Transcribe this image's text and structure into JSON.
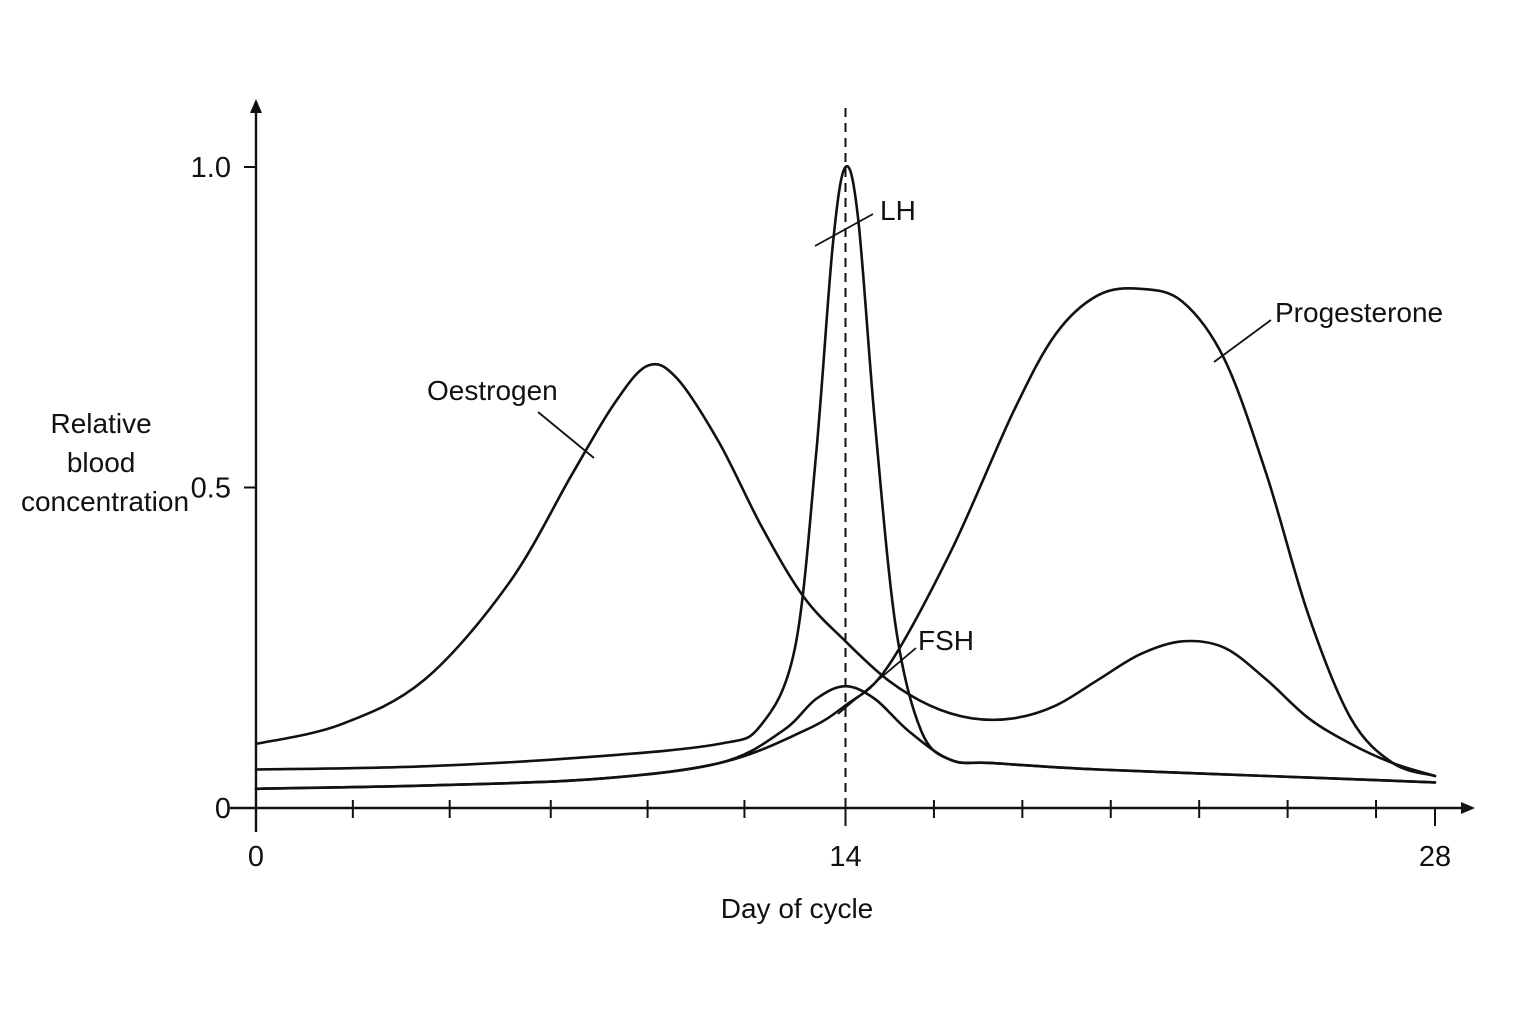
{
  "chart_data": {
    "type": "line",
    "title": "",
    "xlabel": "Day of cycle",
    "ylabel_lines": [
      "Relative",
      "blood",
      "concentration"
    ],
    "xlim": [
      0,
      28
    ],
    "ylim": [
      0,
      1.0
    ],
    "x_ticks": [
      {
        "value": 0,
        "label": "0"
      },
      {
        "value": 14,
        "label": "14"
      },
      {
        "value": 28,
        "label": "28"
      }
    ],
    "y_ticks": [
      {
        "value": 0,
        "label": "0"
      },
      {
        "value": 0.5,
        "label": "0.5"
      },
      {
        "value": 1.0,
        "label": "1.0"
      }
    ],
    "minor_x_ticks": [
      2.3,
      4.6,
      7,
      9.3,
      11.6,
      16.1,
      18.2,
      20.3,
      22.4,
      24.5,
      26.6
    ],
    "reference_line_x": 14,
    "grid": false,
    "series": [
      {
        "name": "Oestrogen",
        "x": [
          0,
          2,
          4,
          6,
          7.5,
          8.5,
          9.3,
          10,
          11,
          12,
          13,
          14,
          15,
          16,
          17,
          18,
          19,
          20,
          21,
          22,
          23,
          24,
          25,
          26,
          27,
          28
        ],
        "y": [
          0.1,
          0.13,
          0.2,
          0.35,
          0.52,
          0.63,
          0.69,
          0.67,
          0.57,
          0.44,
          0.33,
          0.26,
          0.2,
          0.16,
          0.14,
          0.14,
          0.16,
          0.2,
          0.24,
          0.26,
          0.25,
          0.2,
          0.14,
          0.1,
          0.07,
          0.05
        ]
      },
      {
        "name": "LH",
        "x": [
          0,
          4,
          8,
          11,
          12,
          12.8,
          13.3,
          13.7,
          14,
          14.3,
          14.7,
          15.2,
          15.8,
          16.5,
          17.5,
          20,
          24,
          28
        ],
        "y": [
          0.06,
          0.065,
          0.08,
          0.1,
          0.13,
          0.25,
          0.55,
          0.88,
          1.0,
          0.92,
          0.6,
          0.28,
          0.12,
          0.075,
          0.07,
          0.06,
          0.05,
          0.04
        ]
      },
      {
        "name": "FSH",
        "x": [
          0,
          4,
          8,
          11,
          12.5,
          13.3,
          14,
          14.7,
          15.5,
          16.5,
          17.5,
          20,
          24,
          28
        ],
        "y": [
          0.03,
          0.035,
          0.045,
          0.07,
          0.12,
          0.17,
          0.19,
          0.17,
          0.12,
          0.075,
          0.07,
          0.06,
          0.05,
          0.04
        ]
      },
      {
        "name": "Progesterone",
        "x": [
          0,
          4,
          8,
          11,
          13,
          14,
          15,
          16.5,
          18,
          19,
          20,
          21,
          22,
          23,
          24,
          25,
          26,
          27,
          28
        ],
        "y": [
          0.03,
          0.035,
          0.045,
          0.07,
          0.12,
          0.16,
          0.22,
          0.4,
          0.62,
          0.74,
          0.8,
          0.81,
          0.79,
          0.7,
          0.52,
          0.3,
          0.14,
          0.07,
          0.05
        ]
      }
    ]
  }
}
